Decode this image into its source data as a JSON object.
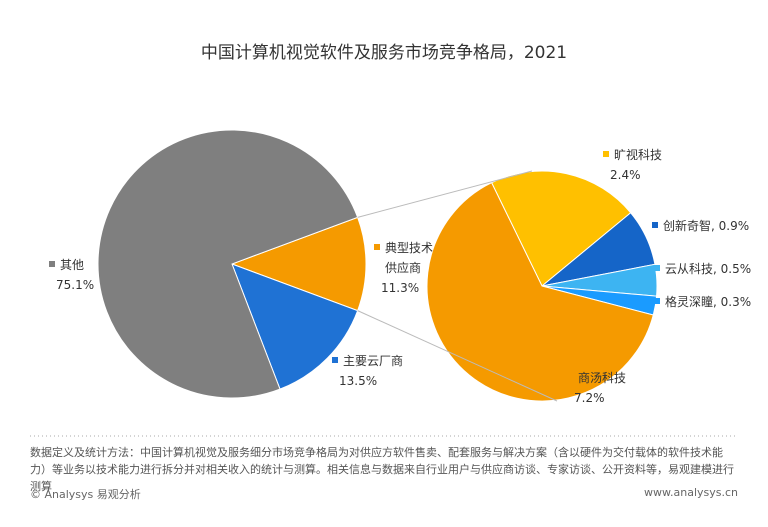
{
  "chart_data": {
    "type": "pie-of-pie",
    "title": "中国计算机视觉软件及服务市场竞争格局，2021",
    "categories": [
      "其他",
      "主要云厂商",
      "典型技术供应商"
    ],
    "values": [
      75.1,
      13.5,
      11.3
    ],
    "value_labels": [
      "75.1%",
      "13.5%",
      "11.3%"
    ],
    "colors": [
      "#7f7f7f",
      "#1f72d4",
      "#f59a00"
    ],
    "sub": {
      "categories": [
        "旷视科技",
        "创新奇智",
        "云从科技",
        "格灵深瞳",
        "商汤科技"
      ],
      "values": [
        2.4,
        0.9,
        0.5,
        0.3,
        7.2
      ],
      "value_labels": [
        "2.4%",
        "0.9%",
        "0.5%",
        "0.3%",
        "7.2%"
      ],
      "colors": [
        "#ffc000",
        "#1565c8",
        "#3db4f2",
        "#1a9bff",
        "#f59a00"
      ]
    }
  },
  "footnote": "数据定义及统计方法：中国计算机视觉及服务细分市场竞争格局为对供应方软件售卖、配套服务与解决方案（含以硬件为交付载体的软件技术能力）等业务以技术能力进行拆分并对相关收入的统计与测算。相关信息与数据来自行业用户与供应商访谈、专家访谈、公开资料等，易观建模进行测算",
  "source": "© Analysys 易观分析",
  "website": "www.analysys.cn"
}
